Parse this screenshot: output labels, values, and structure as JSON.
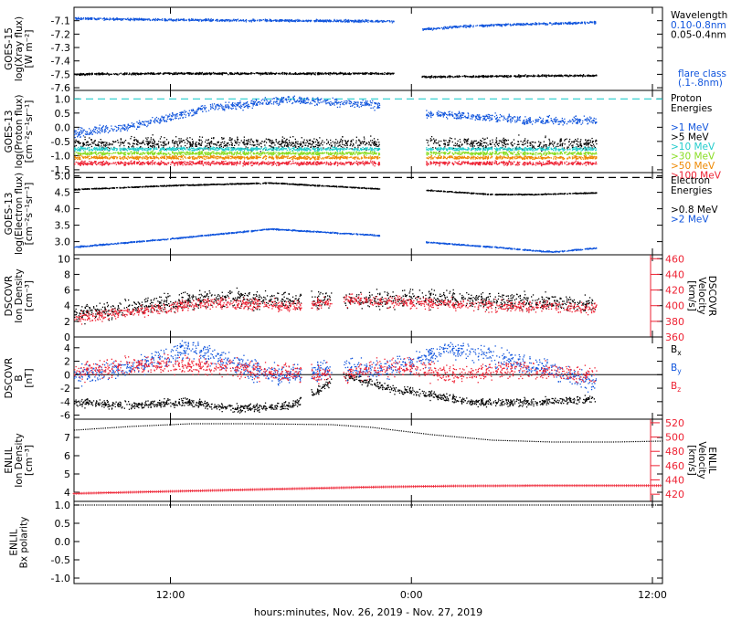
{
  "x_axis": {
    "title": "hours:minutes, Nov. 26, 2019 - Nov. 27, 2019",
    "ticks": [
      {
        "hours": 12,
        "label": "12:00"
      },
      {
        "hours": 24,
        "label": "0:00"
      },
      {
        "hours": 36,
        "label": "12:00"
      }
    ],
    "range_hours": [
      7.2,
      36.5
    ]
  },
  "colors": {
    "black": "#000000",
    "blue": "#1155dd",
    "cyan": "#22cccc",
    "green": "#88dd22",
    "orange": "#ee8800",
    "red": "#ee2233",
    "dark_orange": "#cc6633"
  },
  "chart_data": [
    {
      "id": "goes_xray",
      "type": "scatter",
      "ylabel": [
        "GOES-15",
        "log(Xray flux)",
        "[W m⁻²]"
      ],
      "ylim": [
        -7.62,
        -7.0
      ],
      "yticks": [
        -7.1,
        -7.2,
        -7.3,
        -7.4,
        -7.5,
        -7.6
      ],
      "ytick_labels": [
        "-7.1",
        "-7.2",
        "-7.3",
        "-7.4",
        "-7.5",
        "-7.6"
      ],
      "legend_title": "Wavelength",
      "legend": [
        {
          "label": "0.10-0.8nm",
          "color": "blue"
        },
        {
          "label": "0.05-0.4nm",
          "color": "black"
        },
        {
          "label": "flare class",
          "color": "blue"
        },
        {
          "label": "(.1-.8nm)",
          "color": "blue"
        }
      ],
      "gap_hours": [
        23.1,
        24.5
      ],
      "series": [
        {
          "color": "blue",
          "x": [
            7.2,
            12,
            18,
            23.1,
            24.5,
            27,
            30,
            33.2
          ],
          "y": [
            -7.08,
            -7.09,
            -7.095,
            -7.1,
            -7.16,
            -7.135,
            -7.12,
            -7.11
          ],
          "jitter": 0.007
        },
        {
          "color": "black",
          "x": [
            7.2,
            12,
            18,
            23.1,
            24.5,
            28,
            33.2
          ],
          "y": [
            -7.495,
            -7.49,
            -7.49,
            -7.49,
            -7.515,
            -7.51,
            -7.505
          ],
          "jitter": 0.006
        }
      ]
    },
    {
      "id": "goes_protons",
      "type": "scatter",
      "ylabel": [
        "GOES-13",
        "log(Proton flux)",
        "[cm⁻²s⁻¹sr⁻¹]"
      ],
      "ylim": [
        -1.6,
        1.3
      ],
      "yticks": [
        1.0,
        0.5,
        0.0,
        -0.5,
        -1.0,
        -1.5
      ],
      "ytick_labels": [
        "1.0",
        "0.5",
        "0.0",
        "-0.5",
        "-1.0",
        "-1.5"
      ],
      "threshold": {
        "y": 1.0,
        "color": "cyan"
      },
      "legend_title": "Proton Energies",
      "legend": [
        {
          "label": ">1 MeV",
          "color": "blue"
        },
        {
          "label": ">5 MeV",
          "color": "black"
        },
        {
          "label": ">10 MeV",
          "color": "cyan"
        },
        {
          "label": ">30 MeV",
          "color": "green"
        },
        {
          "label": ">50 MeV",
          "color": "orange"
        },
        {
          "label": ">100 MeV",
          "color": "red"
        }
      ],
      "gap_hours": [
        22.4,
        24.7
      ],
      "series": [
        {
          "color": "blue",
          "x": [
            7.2,
            10,
            14,
            18,
            22.4,
            24.7,
            27,
            30,
            33.2
          ],
          "y": [
            -0.2,
            0.05,
            0.7,
            1.0,
            0.8,
            0.5,
            0.4,
            0.25,
            0.25
          ],
          "jitter": 0.12
        },
        {
          "color": "black",
          "x": [
            7.2,
            33.2
          ],
          "y": [
            -0.55,
            -0.55
          ],
          "jitter": 0.18
        },
        {
          "color": "cyan",
          "x": [
            7.2,
            33.2
          ],
          "y": [
            -0.75,
            -0.75
          ],
          "jitter": 0.05
        },
        {
          "color": "green",
          "x": [
            7.2,
            33.2
          ],
          "y": [
            -0.9,
            -0.9
          ],
          "jitter": 0.05
        },
        {
          "color": "orange",
          "x": [
            7.2,
            33.2
          ],
          "y": [
            -1.05,
            -1.05
          ],
          "jitter": 0.05
        },
        {
          "color": "red",
          "x": [
            7.2,
            33.2
          ],
          "y": [
            -1.25,
            -1.25
          ],
          "jitter": 0.06
        }
      ]
    },
    {
      "id": "goes_electrons",
      "type": "scatter",
      "ylabel": [
        "GOES-13",
        "log(Electron flux)",
        "[cm⁻²s⁻¹sr⁻¹]"
      ],
      "ylim": [
        2.6,
        5.1
      ],
      "yticks": [
        5.0,
        4.5,
        4.0,
        3.5,
        3.0
      ],
      "ytick_labels": [
        "5.0",
        "4.5",
        "4.0",
        "3.5",
        "3.0"
      ],
      "threshold": {
        "y": 4.95,
        "color": "black"
      },
      "legend_title": "Electron Energies",
      "legend": [
        {
          "label": ">0.8 MeV",
          "color": "black"
        },
        {
          "label": ">2 MeV",
          "color": "blue"
        }
      ],
      "gap_hours": [
        22.4,
        24.7
      ],
      "series": [
        {
          "color": "black",
          "x": [
            7.2,
            12,
            17,
            22.4,
            24.7,
            28,
            30,
            33.2
          ],
          "y": [
            4.6,
            4.72,
            4.8,
            4.62,
            4.58,
            4.45,
            4.45,
            4.5
          ],
          "jitter": 0.012
        },
        {
          "color": "blue",
          "x": [
            7.2,
            12,
            17,
            22.4,
            24.7,
            28,
            31,
            33.2
          ],
          "y": [
            2.85,
            3.1,
            3.4,
            3.2,
            3.0,
            2.85,
            2.7,
            2.82
          ],
          "jitter": 0.015
        }
      ]
    },
    {
      "id": "dscovr_plasma",
      "type": "scatter",
      "ylabel": [
        "DSCOVR",
        "Ion Density",
        "[cm⁻³]"
      ],
      "ylim": [
        0,
        10.5
      ],
      "yticks": [
        10,
        8,
        6,
        4,
        2,
        0
      ],
      "ytick_labels": [
        "10",
        "8",
        "6",
        "4",
        "2",
        "0"
      ],
      "y2label": [
        "DSCOVR",
        "Velocity",
        "[km/s]"
      ],
      "y2lim": [
        360,
        465
      ],
      "y2ticks": [
        460,
        440,
        420,
        400,
        380,
        360
      ],
      "y2tick_labels": [
        "460",
        "440",
        "420",
        "400",
        "380",
        "360"
      ],
      "gaps_hours": [
        [
          18.5,
          19.0
        ],
        [
          20.0,
          20.6
        ]
      ],
      "series": [
        {
          "color": "black",
          "axis": "left",
          "x": [
            7.2,
            10,
            14,
            18,
            21,
            24,
            28,
            33.2
          ],
          "y": [
            3.0,
            3.8,
            5.0,
            4.8,
            4.8,
            5.0,
            4.8,
            4.3
          ],
          "jitter": 0.9
        },
        {
          "color": "red",
          "axis": "right",
          "x": [
            7.2,
            10,
            14,
            18,
            21,
            24,
            28,
            33.2
          ],
          "y": [
            385,
            392,
            405,
            400,
            408,
            405,
            400,
            398
          ],
          "jitter": 6
        }
      ]
    },
    {
      "id": "dscovr_mag",
      "type": "scatter",
      "ylabel": [
        "DSCOVR",
        "B",
        "[nT]"
      ],
      "ylim": [
        -6.6,
        5.6
      ],
      "yticks": [
        4,
        2,
        0,
        -2,
        -4,
        -6
      ],
      "ytick_labels": [
        "4",
        "2",
        "0",
        "-2",
        "-4",
        "-6"
      ],
      "zero_line": true,
      "legend": [
        {
          "label": "Bx",
          "main": "B",
          "sub": "x",
          "color": "black"
        },
        {
          "label": "By",
          "main": "B",
          "sub": "y",
          "color": "blue"
        },
        {
          "label": "Bz",
          "main": "B",
          "sub": "z",
          "color": "red"
        }
      ],
      "gaps_hours": [
        [
          18.5,
          19.0
        ],
        [
          20.0,
          20.6
        ]
      ],
      "series": [
        {
          "color": "black",
          "x": [
            7.2,
            10,
            13,
            15,
            18,
            20.6,
            23,
            27,
            30,
            33.2
          ],
          "y": [
            -4,
            -4.5,
            -4,
            -5,
            -4.5,
            0,
            -2,
            -4,
            -4,
            -3.5
          ],
          "jitter": 0.5
        },
        {
          "color": "blue",
          "x": [
            7.2,
            10,
            13,
            15,
            17,
            20.6,
            23,
            26,
            29,
            33.2
          ],
          "y": [
            0,
            1,
            4,
            2,
            0,
            1,
            1,
            4,
            2,
            -1
          ],
          "jitter": 1.2
        },
        {
          "color": "red",
          "x": [
            7.2,
            10,
            13,
            15,
            17,
            20.6,
            23,
            26,
            29,
            33.2
          ],
          "y": [
            0.5,
            1.5,
            1.5,
            1,
            0.5,
            0,
            1.5,
            0,
            1,
            0
          ],
          "jitter": 1.1
        }
      ]
    },
    {
      "id": "enlil_plasma",
      "type": "line",
      "ylabel": [
        "ENLIL",
        "Ion Density",
        "[cm⁻³]"
      ],
      "ylim": [
        3.5,
        8.0
      ],
      "yticks": [
        7,
        6,
        5,
        4
      ],
      "ytick_labels": [
        "7",
        "6",
        "5",
        "4"
      ],
      "y2label": [
        "ENLIL",
        "Velocity",
        "[km/s]"
      ],
      "y2lim": [
        410,
        525
      ],
      "y2ticks": [
        520,
        500,
        480,
        460,
        440,
        420
      ],
      "y2tick_labels": [
        "520",
        "500",
        "480",
        "460",
        "440",
        "420"
      ],
      "series": [
        {
          "color": "black",
          "axis": "left",
          "marker": "dot",
          "x": [
            7.2,
            10,
            13,
            16,
            20,
            22,
            25,
            28,
            31,
            34,
            36.5
          ],
          "y": [
            7.4,
            7.6,
            7.75,
            7.75,
            7.7,
            7.55,
            7.15,
            6.85,
            6.75,
            6.75,
            6.8
          ]
        },
        {
          "color": "red",
          "axis": "right",
          "marker": "plus",
          "x": [
            7.2,
            12,
            17,
            22,
            26,
            30,
            36.5
          ],
          "y": [
            421,
            424,
            427,
            430,
            431.5,
            432,
            432
          ]
        }
      ]
    },
    {
      "id": "enlil_polarity",
      "type": "line",
      "ylabel": [
        "ENLIL",
        "Bx polarity"
      ],
      "ylabel_sub": "x",
      "ylim": [
        -1.15,
        1.1
      ],
      "yticks": [
        1.0,
        0.5,
        0.0,
        -0.5,
        -1.0
      ],
      "ytick_labels": [
        "1.0",
        "0.5",
        "0.0",
        "-0.5",
        "-1.0"
      ],
      "series": [
        {
          "color": "black",
          "marker": "dot",
          "x": [
            7.2,
            36.5
          ],
          "y": [
            1.0,
            1.0
          ]
        }
      ]
    }
  ]
}
